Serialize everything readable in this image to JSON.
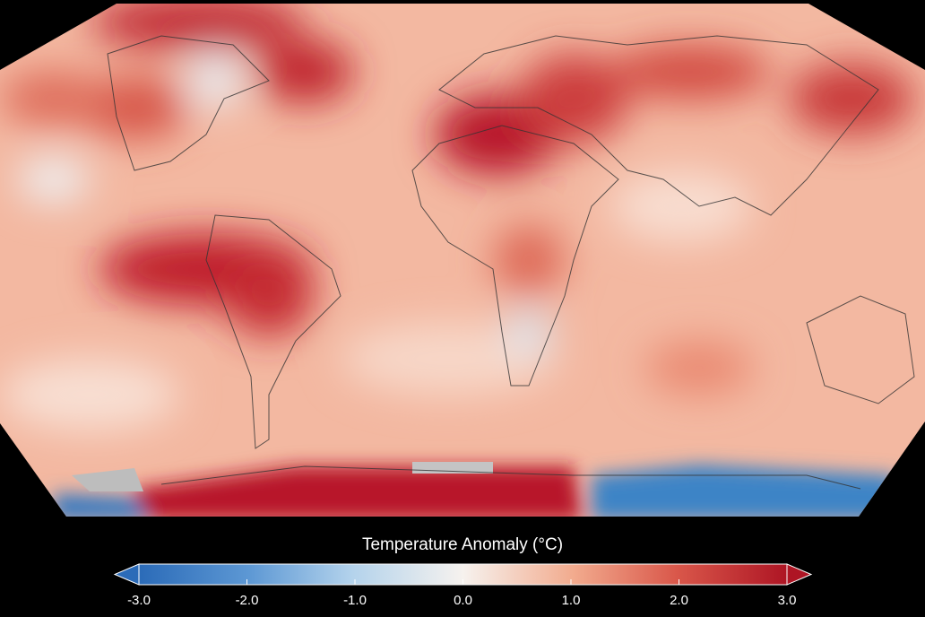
{
  "colorbar": {
    "title": "Temperature Anomaly (°C)",
    "lim": [
      -3,
      3
    ],
    "ticks": [
      {
        "value": -3,
        "label": "-3.0"
      },
      {
        "value": -2,
        "label": "-2.0"
      },
      {
        "value": -1,
        "label": "-1.0"
      },
      {
        "value": 0,
        "label": "0.0"
      },
      {
        "value": 1,
        "label": "1.0"
      },
      {
        "value": 2,
        "label": "2.0"
      },
      {
        "value": 3,
        "label": "3.0"
      }
    ]
  }
}
